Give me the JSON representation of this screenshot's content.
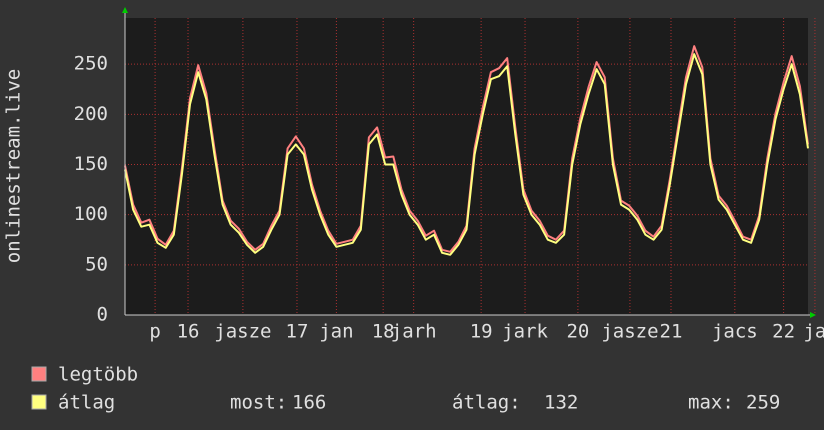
{
  "chart_data": {
    "type": "line",
    "y_label": "onlinestream.live",
    "x": [
      0,
      2,
      4,
      6,
      8,
      10,
      12,
      14,
      16,
      18,
      20,
      22,
      24,
      26,
      28,
      30,
      32,
      34,
      36,
      38,
      40,
      42,
      44,
      46,
      48,
      50,
      52,
      54,
      56,
      58,
      60,
      62,
      64,
      66,
      68,
      70,
      72,
      74,
      76,
      78,
      80,
      82,
      84,
      86,
      88,
      90,
      92,
      94,
      96,
      98,
      100,
      102,
      104,
      106,
      108,
      110,
      112,
      114,
      116,
      118,
      120,
      122,
      124,
      126,
      128,
      130,
      132,
      134,
      136,
      138,
      140,
      142,
      144,
      146,
      148,
      150,
      152,
      154,
      156,
      158,
      160,
      162,
      164,
      166,
      168
    ],
    "series": [
      {
        "name": "legtöbb",
        "color": "#ff8080",
        "values": [
          149,
          110,
          92,
          95,
          76,
          70,
          84,
          146,
          216,
          249,
          221,
          166,
          114,
          94,
          86,
          73,
          65,
          71,
          89,
          104,
          166,
          178,
          166,
          130,
          104,
          84,
          71,
          73,
          75,
          89,
          177,
          187,
          157,
          158,
          125,
          104,
          94,
          79,
          84,
          65,
          63,
          73,
          89,
          166,
          207,
          242,
          246,
          256,
          187,
          125,
          104,
          94,
          79,
          75,
          84,
          156,
          196,
          227,
          252,
          237,
          156,
          114,
          109,
          99,
          84,
          78,
          89,
          135,
          186,
          237,
          268,
          247,
          156,
          119,
          109,
          94,
          78,
          75,
          99,
          156,
          201,
          232,
          258,
          228,
          170
        ]
      },
      {
        "name": "átlag",
        "color": "#ffff80",
        "values": [
          145,
          105,
          88,
          90,
          72,
          67,
          80,
          140,
          210,
          242,
          215,
          160,
          110,
          90,
          82,
          70,
          62,
          68,
          85,
          100,
          160,
          170,
          160,
          125,
          100,
          80,
          68,
          70,
          72,
          85,
          170,
          180,
          150,
          150,
          120,
          100,
          90,
          75,
          80,
          62,
          60,
          70,
          85,
          160,
          200,
          235,
          238,
          248,
          180,
          120,
          100,
          90,
          75,
          72,
          80,
          150,
          190,
          220,
          245,
          230,
          150,
          110,
          105,
          95,
          80,
          75,
          85,
          130,
          180,
          230,
          260,
          240,
          150,
          115,
          105,
          90,
          75,
          72,
          95,
          150,
          195,
          225,
          250,
          220,
          166
        ]
      }
    ],
    "stats": [
      {
        "label": "most:",
        "value": 166
      },
      {
        "label": "átlag:",
        "value": 132
      },
      {
        "label": "max:",
        "value": 259
      }
    ],
    "xlim": [
      0,
      168
    ],
    "xticks": [
      {
        "value": 7.4,
        "label": "p"
      },
      {
        "value": 15.5,
        "label": "16"
      },
      {
        "value": 29,
        "label": "jasze"
      },
      {
        "value": 42.3,
        "label": "17"
      },
      {
        "value": 52,
        "label": "jan"
      },
      {
        "value": 63.5,
        "label": "18"
      },
      {
        "value": 71,
        "label": "jarh"
      },
      {
        "value": 87.6,
        "label": "19"
      },
      {
        "value": 98.4,
        "label": "jark"
      },
      {
        "value": 111.4,
        "label": "20"
      },
      {
        "value": 124.2,
        "label": "jasze"
      },
      {
        "value": 134.3,
        "label": "21"
      },
      {
        "value": 150,
        "label": "jacs"
      },
      {
        "value": 162,
        "label": "22"
      },
      {
        "value": 169.7,
        "label": "ja"
      }
    ],
    "ylim": [
      0,
      296
    ],
    "yticks": [
      0,
      50,
      100,
      150,
      200,
      250
    ],
    "grid": true
  }
}
